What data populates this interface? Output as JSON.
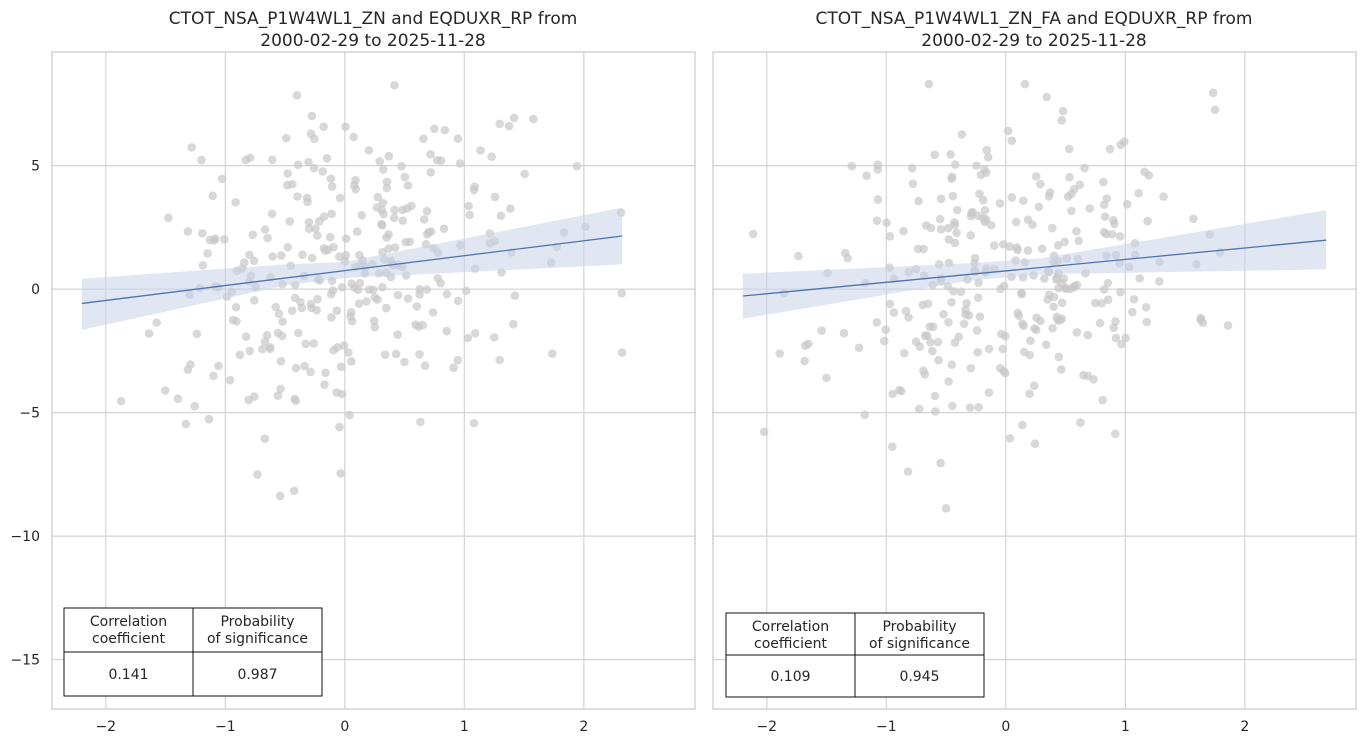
{
  "chart_data": [
    {
      "type": "scatter",
      "title_lines": [
        "CTOT_NSA_P1W4WL1_ZN and EQDUXR_RP from",
        "2000-02-29 to 2025-11-28"
      ],
      "xlim": [
        -2.45,
        2.93
      ],
      "ylim": [
        -17.0,
        9.6
      ],
      "xticks": [
        -2,
        -1,
        0,
        1,
        2
      ],
      "xtick_labels": [
        "−2",
        "−1",
        "0",
        "1",
        "2"
      ],
      "yticks": [
        -15,
        -10,
        -5,
        0,
        5
      ],
      "ytick_labels": [
        "−15",
        "−10",
        "−5",
        "0",
        "5"
      ],
      "grid": true,
      "point_color": "#c8c8c8",
      "line_color": "#4c72b0",
      "band_color": "#c7d4ea",
      "regression": {
        "x0": -2.2,
        "y0": -0.58,
        "x1": 2.32,
        "y1": 2.15,
        "band_lo": [
          [
            -2.2,
            -1.65
          ],
          [
            -0.5,
            0.15
          ],
          [
            0.0,
            0.45
          ],
          [
            2.32,
            1.0
          ]
        ],
        "band_hi": [
          [
            -2.2,
            0.42
          ],
          [
            -0.5,
            1.0
          ],
          [
            0.0,
            1.1
          ],
          [
            2.32,
            3.3
          ]
        ]
      },
      "table": {
        "headers": [
          [
            "Correlation",
            "coefficient"
          ],
          [
            "Probability",
            "of significance"
          ]
        ],
        "values": [
          "0.141",
          "0.987"
        ]
      },
      "points_seed": 7,
      "points_n": 310
    },
    {
      "type": "scatter",
      "title_lines": [
        "CTOT_NSA_P1W4WL1_ZN_FA and EQDUXR_RP from",
        "2000-02-29 to 2025-11-28"
      ],
      "xlim": [
        -2.45,
        2.93
      ],
      "ylim": [
        -17.0,
        9.6
      ],
      "xticks": [
        -2,
        -1,
        0,
        1,
        2
      ],
      "xtick_labels": [
        "−2",
        "−1",
        "0",
        "1",
        "2"
      ],
      "yticks": [
        -15,
        -10,
        -5,
        0,
        5
      ],
      "ytick_labels": [],
      "grid": true,
      "point_color": "#c8c8c8",
      "line_color": "#4c72b0",
      "band_color": "#c7d4ea",
      "regression": {
        "x0": -2.2,
        "y0": -0.28,
        "x1": 2.68,
        "y1": 1.98,
        "band_lo": [
          [
            -2.2,
            -1.2
          ],
          [
            -0.3,
            0.35
          ],
          [
            0.3,
            0.6
          ],
          [
            2.68,
            0.8
          ]
        ],
        "band_hi": [
          [
            -2.2,
            0.62
          ],
          [
            -0.3,
            1.05
          ],
          [
            0.3,
            1.25
          ],
          [
            2.68,
            3.2
          ]
        ]
      },
      "table": {
        "headers": [
          [
            "Correlation",
            "coefficient"
          ],
          [
            "Probability",
            "of significance"
          ]
        ],
        "values": [
          "0.109",
          "0.945"
        ]
      },
      "points_seed": 11,
      "points_n": 310
    }
  ]
}
